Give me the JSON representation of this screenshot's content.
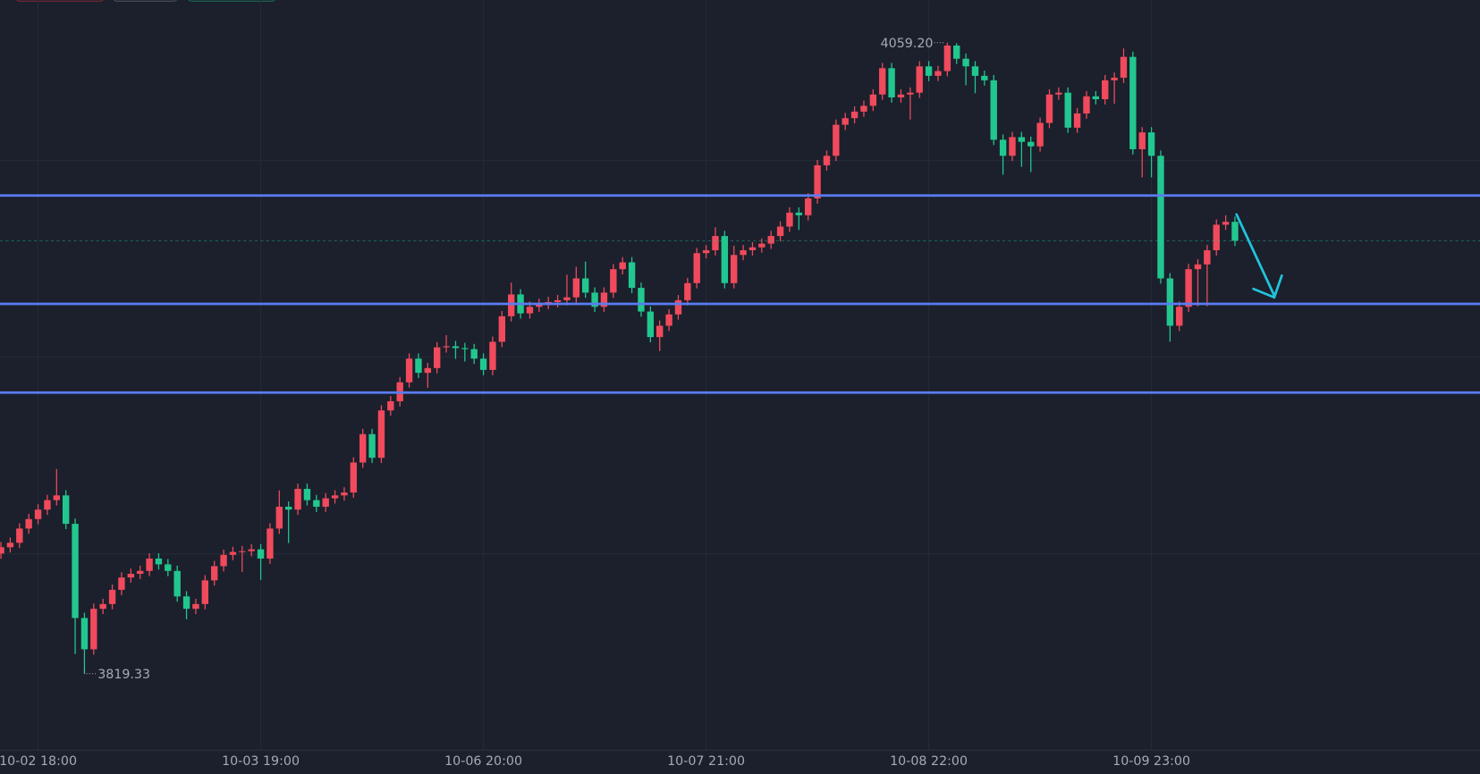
{
  "chart_data": {
    "type": "candlestick",
    "categories": [
      null,
      null,
      null,
      null,
      "10-02 18:00",
      null,
      null,
      null,
      null,
      null,
      null,
      null,
      null,
      null,
      null,
      null,
      null,
      null,
      null,
      null,
      null,
      null,
      null,
      null,
      null,
      null,
      null,
      null,
      "10-03 19:00",
      null,
      null,
      null,
      null,
      null,
      null,
      null,
      null,
      null,
      null,
      null,
      null,
      null,
      null,
      null,
      null,
      null,
      null,
      null,
      null,
      null,
      null,
      null,
      "10-06 20:00",
      null,
      null,
      null,
      null,
      null,
      null,
      null,
      null,
      null,
      null,
      null,
      null,
      null,
      null,
      null,
      null,
      null,
      null,
      null,
      null,
      null,
      null,
      null,
      "10-07 21:00",
      null,
      null,
      null,
      null,
      null,
      null,
      null,
      null,
      null,
      null,
      null,
      null,
      null,
      null,
      null,
      null,
      null,
      null,
      null,
      null,
      null,
      null,
      null,
      "10-08 22:00",
      null,
      null,
      null,
      null,
      null,
      null,
      null,
      null,
      null,
      null,
      null,
      null,
      null,
      null,
      null,
      null,
      null,
      null,
      null,
      null,
      null,
      null,
      null,
      "10-09 23:00",
      null,
      null,
      null,
      null,
      null,
      null,
      null,
      null,
      null
    ],
    "open": [
      3865.0,
      3867.4,
      3869.1,
      3874.5,
      3878.1,
      3881.7,
      3885.3,
      3887.1,
      3876.3,
      3840.5,
      3828.6,
      3844.0,
      3845.8,
      3851.2,
      3855.9,
      3857.3,
      3858.4,
      3863.1,
      3860.9,
      3858.4,
      3848.7,
      3844.0,
      3845.8,
      3854.8,
      3860.2,
      3864.5,
      3865.6,
      3865.9,
      3866.6,
      3863.1,
      3874.5,
      3882.8,
      3881.7,
      3889.6,
      3885.3,
      3882.8,
      3886.0,
      3887.1,
      3888.2,
      3899.6,
      3910.4,
      3901.4,
      3919.4,
      3922.9,
      3930.1,
      3939.1,
      3933.7,
      3935.5,
      3943.4,
      3943.8,
      3943.1,
      3942.7,
      3939.1,
      3934.8,
      3945.5,
      3955.2,
      3963.5,
      3956.3,
      3958.8,
      3959.9,
      3960.6,
      3961.3,
      3962.4,
      3969.6,
      3964.2,
      3958.8,
      3964.2,
      3973.1,
      3975.7,
      3966.0,
      3957.0,
      3947.3,
      3951.6,
      3955.9,
      3961.3,
      3967.8,
      3979.2,
      3980.3,
      3985.7,
      3967.8,
      3978.5,
      3980.3,
      3981.4,
      3982.8,
      3985.7,
      3989.3,
      3994.6,
      3993.6,
      4000.0,
      4012.6,
      4016.2,
      4028.0,
      4030.5,
      4033.0,
      4035.2,
      4039.5,
      4049.5,
      4038.4,
      4039.5,
      4040.2,
      4050.2,
      4046.6,
      4048.4,
      4058.1,
      4053.1,
      4050.2,
      4046.6,
      4044.9,
      4022.3,
      4016.2,
      4023.3,
      4021.5,
      4019.8,
      4028.7,
      4039.5,
      4040.2,
      4026.9,
      4032.3,
      4038.8,
      4037.7,
      4044.9,
      4045.9,
      4053.8,
      4018.7,
      4025.1,
      4016.2,
      3969.6,
      3951.6,
      3958.8,
      3973.1,
      3974.9,
      3980.3,
      3990.0,
      3991.1
    ],
    "high": [
      3869.4,
      3871.1,
      3876.5,
      3880.1,
      3883.7,
      3887.3,
      3897.1,
      3889.1,
      3878.3,
      3842.5,
      3846.0,
      3847.8,
      3853.2,
      3857.9,
      3859.3,
      3860.4,
      3865.1,
      3865.1,
      3862.9,
      3860.4,
      3850.7,
      3847.8,
      3856.8,
      3862.2,
      3866.5,
      3867.6,
      3867.9,
      3868.6,
      3868.6,
      3876.5,
      3889.0,
      3884.8,
      3891.6,
      3891.6,
      3887.3,
      3888.0,
      3889.1,
      3890.2,
      3901.6,
      3912.4,
      3912.4,
      3921.4,
      3924.9,
      3932.1,
      3941.1,
      3941.1,
      3937.5,
      3945.4,
      3948.0,
      3945.8,
      3945.1,
      3944.7,
      3941.1,
      3947.5,
      3957.2,
      3968.0,
      3965.5,
      3960.8,
      3961.9,
      3962.6,
      3963.3,
      3971.0,
      3974.0,
      3976.0,
      3966.2,
      3966.2,
      3975.1,
      3977.7,
      3977.7,
      3968.0,
      3959.0,
      3953.6,
      3957.9,
      3963.3,
      3969.8,
      3981.2,
      3982.3,
      3989.0,
      3987.7,
      3982.0,
      3982.3,
      3983.4,
      3984.8,
      3987.7,
      3991.3,
      3996.6,
      3996.6,
      4002.0,
      4014.6,
      4018.2,
      4030.0,
      4032.5,
      4035.0,
      4037.2,
      4041.5,
      4051.5,
      4051.5,
      4041.5,
      4042.2,
      4052.2,
      4052.2,
      4050.4,
      4059.2,
      4059.0,
      4055.1,
      4052.2,
      4048.6,
      4046.9,
      4024.3,
      4025.3,
      4025.3,
      4023.5,
      4030.7,
      4041.5,
      4042.2,
      4042.2,
      4034.3,
      4040.8,
      4040.8,
      4046.9,
      4047.9,
      4057.0,
      4055.8,
      4027.1,
      4027.1,
      4018.2,
      3971.6,
      3960.8,
      3975.1,
      3976.9,
      3982.3,
      3992.0,
      3993.6,
      3993.1
    ],
    "low": [
      3863.0,
      3865.4,
      3867.1,
      3872.5,
      3876.1,
      3879.7,
      3883.3,
      3874.3,
      3826.8,
      3819.33,
      3826.6,
      3842.0,
      3843.8,
      3849.2,
      3853.9,
      3855.3,
      3856.4,
      3858.9,
      3856.4,
      3846.7,
      3840.0,
      3842.0,
      3843.8,
      3852.8,
      3858.2,
      3862.5,
      3858.0,
      3863.9,
      3855.0,
      3861.1,
      3872.5,
      3869.0,
      3879.7,
      3883.3,
      3880.8,
      3880.8,
      3884.0,
      3885.1,
      3886.2,
      3897.6,
      3899.4,
      3899.4,
      3917.4,
      3920.9,
      3928.1,
      3931.7,
      3928.0,
      3933.5,
      3941.4,
      3939.0,
      3938.0,
      3937.1,
      3932.8,
      3932.8,
      3943.5,
      3953.2,
      3954.3,
      3954.3,
      3956.8,
      3957.9,
      3958.6,
      3959.3,
      3960.4,
      3962.2,
      3956.8,
      3956.8,
      3962.2,
      3971.1,
      3964.0,
      3955.0,
      3945.3,
      3942.0,
      3949.6,
      3953.9,
      3959.3,
      3965.8,
      3977.2,
      3978.3,
      3965.8,
      3965.8,
      3976.5,
      3978.3,
      3979.4,
      3980.8,
      3983.7,
      3987.3,
      3988.0,
      3991.6,
      3998.0,
      4010.6,
      4014.2,
      4026.0,
      4028.5,
      4031.0,
      4033.2,
      4037.5,
      4036.4,
      4036.4,
      4030.0,
      4038.2,
      4044.6,
      4044.6,
      4046.4,
      4051.1,
      4043.0,
      4040.0,
      4042.9,
      4020.3,
      4009.0,
      4014.2,
      4012.0,
      4010.0,
      4017.8,
      4026.7,
      4037.5,
      4024.9,
      4024.9,
      4030.3,
      4035.7,
      4035.7,
      4036.0,
      4043.9,
      4016.7,
      4008.0,
      4008.0,
      3967.6,
      3945.5,
      3949.6,
      3956.8,
      3959.0,
      3959.0,
      3978.3,
      3988.0,
      3981.9
    ],
    "close": [
      3867.4,
      3869.1,
      3874.5,
      3878.1,
      3881.7,
      3885.3,
      3887.1,
      3876.3,
      3840.5,
      3828.6,
      3844.0,
      3845.8,
      3851.2,
      3855.9,
      3857.3,
      3858.4,
      3863.1,
      3860.9,
      3858.4,
      3848.7,
      3844.0,
      3845.8,
      3854.8,
      3860.2,
      3864.5,
      3865.6,
      3865.9,
      3866.6,
      3863.1,
      3874.5,
      3882.8,
      3881.7,
      3889.6,
      3885.3,
      3882.8,
      3886.0,
      3887.1,
      3888.2,
      3899.6,
      3910.4,
      3901.4,
      3919.4,
      3922.9,
      3930.1,
      3939.1,
      3933.7,
      3935.5,
      3943.4,
      3943.8,
      3943.1,
      3942.7,
      3939.1,
      3934.8,
      3945.5,
      3955.2,
      3963.5,
      3956.3,
      3958.8,
      3959.9,
      3960.6,
      3961.3,
      3962.4,
      3969.6,
      3964.2,
      3958.8,
      3964.2,
      3973.1,
      3975.7,
      3966.0,
      3957.0,
      3947.3,
      3951.6,
      3955.9,
      3961.3,
      3967.8,
      3979.2,
      3980.3,
      3985.7,
      3967.8,
      3978.5,
      3980.3,
      3981.4,
      3982.8,
      3985.7,
      3989.3,
      3994.6,
      3993.6,
      4000.0,
      4012.6,
      4016.2,
      4028.0,
      4030.5,
      4033.0,
      4035.2,
      4039.5,
      4049.5,
      4038.4,
      4039.5,
      4040.2,
      4050.2,
      4046.6,
      4048.4,
      4058.1,
      4053.1,
      4050.2,
      4046.6,
      4044.9,
      4022.3,
      4016.2,
      4023.3,
      4021.5,
      4019.8,
      4028.7,
      4039.5,
      4040.2,
      4026.9,
      4032.3,
      4038.8,
      4037.7,
      4044.9,
      4045.9,
      4053.8,
      4018.7,
      4025.1,
      4016.2,
      3969.6,
      3951.6,
      3958.8,
      3973.1,
      3974.9,
      3980.3,
      3990.0,
      3991.1,
      3983.9
    ],
    "up_color": "#f04a5c",
    "down_color": "#22c78f",
    "ylim": [
      3790.25,
      4075.34
    ],
    "max_label": "4059.20",
    "min_label": "3819.33",
    "hlines": [
      4001.1,
      3959.9,
      3926.2
    ],
    "hline_color": "#5a7cf2",
    "grid": true
  }
}
